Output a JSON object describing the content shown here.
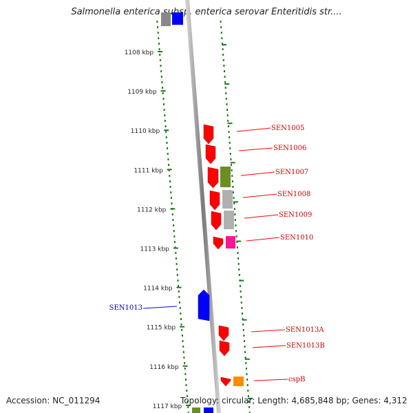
{
  "title": "Salmonella enterica subsp. enterica serovar Enteritidis str....",
  "footer": {
    "accession": "Accession: NC_011294",
    "topology": "Topology: circular; Length: 4,685,848 bp; Genes: 4,312"
  },
  "scale_labels": [
    "1108 kbp",
    "1109 kbp",
    "1110 kbp",
    "1111 kbp",
    "1112 kbp",
    "1113 kbp",
    "1114 kbp",
    "1115 kbp",
    "1116 kbp",
    "1117 kbp"
  ],
  "genes": [
    {
      "name": "SEN1005",
      "color": "#ff0000"
    },
    {
      "name": "SEN1006",
      "color": "#ff0000"
    },
    {
      "name": "SEN1007",
      "color": "#ff0000"
    },
    {
      "name": "SEN1008",
      "color": "#ff0000"
    },
    {
      "name": "SEN1009",
      "color": "#ff0000"
    },
    {
      "name": "SEN1010",
      "color": "#ff0000"
    },
    {
      "name": "SEN1013A",
      "color": "#ff0000"
    },
    {
      "name": "SEN1013B",
      "color": "#ff0000"
    },
    {
      "name": "cspB",
      "color": "#ff0000"
    },
    {
      "name": "SEN1013",
      "color": "#0000ff"
    }
  ],
  "colors": {
    "forward": "#ff0000",
    "reverse": "#0000ff",
    "olive": "#6b8e23",
    "grey": "#b0b0b0",
    "magenta": "#ff1493",
    "orange": "#ff8c00",
    "tick": "#1a7a1a"
  }
}
